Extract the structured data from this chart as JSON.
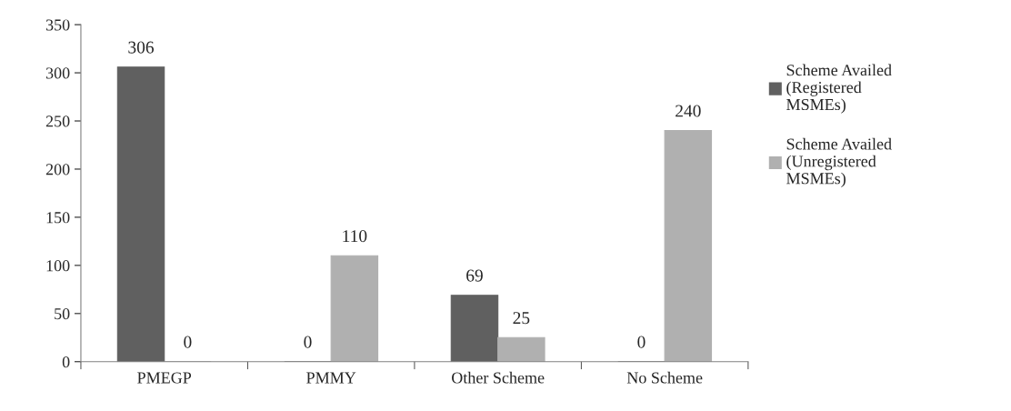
{
  "chart_data": {
    "type": "bar",
    "categories": [
      "PMEGP",
      "PMMY",
      "Other Scheme",
      "No Scheme"
    ],
    "series": [
      {
        "name": "Scheme Availed (Registered MSMEs)",
        "color": "#606060",
        "values": [
          306,
          0,
          69,
          0
        ]
      },
      {
        "name": "Scheme Availed (Unregistered MSMEs)",
        "color": "#b0b0b0",
        "values": [
          0,
          110,
          25,
          240
        ]
      }
    ],
    "ylim": [
      0,
      350
    ],
    "yticks": [
      0,
      50,
      100,
      150,
      200,
      250,
      300,
      350
    ],
    "grid": false,
    "legend": "right",
    "data_labels": true
  }
}
